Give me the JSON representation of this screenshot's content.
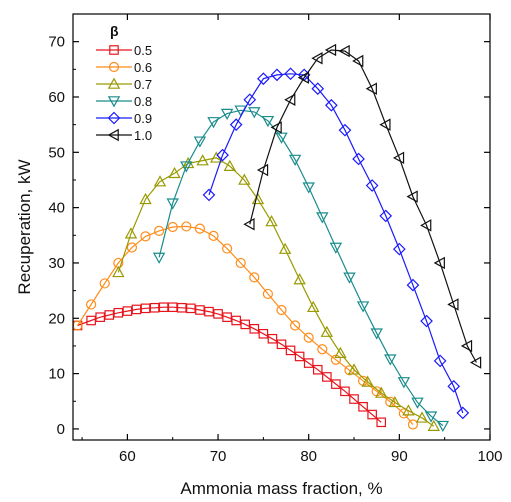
{
  "chart_data": {
    "type": "line",
    "title": "",
    "xlabel": "Ammonia mass fraction, %",
    "ylabel": "Recuperation, kW",
    "xlim": [
      54,
      100
    ],
    "ylim": [
      -2,
      75
    ],
    "xticks": [
      60,
      70,
      80,
      90,
      100
    ],
    "yticks": [
      0,
      10,
      20,
      30,
      40,
      50,
      60,
      70
    ],
    "grid": false,
    "legend": {
      "title": "β",
      "position": "top-left"
    },
    "series": [
      {
        "name": "0.5",
        "color": "#e8141c",
        "marker": "square",
        "x": [
          54.5,
          56,
          57,
          58,
          59,
          60,
          61,
          62,
          63,
          64,
          65,
          66,
          67,
          68,
          69,
          70,
          71,
          72,
          73,
          74,
          75,
          76,
          77,
          78,
          79,
          80,
          81,
          82,
          83,
          84,
          85,
          86,
          87,
          88
        ],
        "y": [
          18.7,
          19.6,
          20.2,
          20.6,
          21.0,
          21.3,
          21.6,
          21.8,
          21.9,
          22.0,
          22.0,
          21.9,
          21.8,
          21.5,
          21.2,
          20.8,
          20.2,
          19.6,
          18.9,
          18.1,
          17.2,
          16.3,
          15.3,
          14.2,
          13.1,
          11.9,
          10.7,
          9.4,
          8.1,
          6.8,
          5.4,
          4.0,
          2.6,
          1.2
        ]
      },
      {
        "name": "0.6",
        "color": "#ff8c1a",
        "marker": "circle",
        "x": [
          54.5,
          56,
          57.5,
          59,
          60.5,
          62,
          63.5,
          65,
          66.5,
          68,
          69.5,
          71,
          72.5,
          74,
          75.5,
          77,
          78.5,
          80,
          81.5,
          83,
          84.5,
          86,
          87.5,
          89,
          90.5,
          91.5
        ],
        "y": [
          18.7,
          22.5,
          26.3,
          30.0,
          32.8,
          34.8,
          35.8,
          36.5,
          36.6,
          36.2,
          34.9,
          32.6,
          30.0,
          27.4,
          24.4,
          21.5,
          18.7,
          16.5,
          14.4,
          12.5,
          10.6,
          8.7,
          6.8,
          4.9,
          2.8,
          0.8
        ]
      },
      {
        "name": "0.7",
        "color": "#999a00",
        "marker": "triangle-up",
        "x": [
          59,
          60.4,
          62,
          63.6,
          65.2,
          66.7,
          68.3,
          69.8,
          71.3,
          72.9,
          74.4,
          75.9,
          77.4,
          79,
          80.5,
          82,
          83.5,
          85,
          86.5,
          88,
          89.5,
          91,
          92.5,
          93.8
        ],
        "y": [
          28.3,
          35.3,
          41.5,
          44.7,
          46.2,
          48.0,
          48.5,
          49.0,
          47.5,
          45.0,
          41.5,
          37.5,
          32.5,
          27.0,
          22.0,
          17.5,
          13.7,
          10.7,
          8.5,
          6.5,
          4.8,
          3.3,
          2.0,
          0.5
        ]
      },
      {
        "name": "0.8",
        "color": "#1a8c8c",
        "marker": "triangle-down",
        "x": [
          63.5,
          65,
          66.5,
          68,
          69.5,
          71,
          72.5,
          74,
          75.5,
          77,
          78.5,
          80,
          81.5,
          83,
          84.5,
          86,
          87.5,
          89,
          90.5,
          92,
          93.5,
          94.8
        ],
        "y": [
          31.0,
          40.8,
          47.5,
          52.0,
          55.5,
          57.0,
          57.6,
          57.3,
          55.7,
          52.7,
          48.7,
          43.7,
          38.3,
          32.8,
          27.4,
          22.2,
          17.3,
          12.6,
          8.5,
          4.8,
          2.3,
          0.6
        ]
      },
      {
        "name": "0.9",
        "color": "#1a1aff",
        "marker": "diamond",
        "x": [
          69,
          70.5,
          72,
          73.5,
          75,
          76.5,
          78,
          79.5,
          81,
          82.5,
          84,
          85.5,
          87,
          88.5,
          90,
          91.5,
          93,
          94.5,
          96,
          97
        ],
        "y": [
          42.3,
          49.5,
          55.0,
          59.5,
          63.3,
          64.0,
          64.2,
          64.0,
          61.5,
          58.5,
          54.0,
          48.8,
          44.0,
          38.5,
          32.5,
          26.0,
          19.5,
          12.3,
          7.7,
          2.9
        ]
      },
      {
        "name": "1.0",
        "color": "#111111",
        "marker": "triangle-left",
        "x": [
          73.5,
          75,
          76.5,
          78,
          79.5,
          81,
          82.5,
          84,
          85.5,
          87,
          88.5,
          90,
          91.5,
          93,
          94.5,
          96,
          97.5,
          98.5
        ],
        "y": [
          37.0,
          46.8,
          54.5,
          59.5,
          63.5,
          67.0,
          68.5,
          68.3,
          66.5,
          61.5,
          55.0,
          49.0,
          42.0,
          36.8,
          30.0,
          22.5,
          15.0,
          12.0
        ]
      }
    ]
  }
}
